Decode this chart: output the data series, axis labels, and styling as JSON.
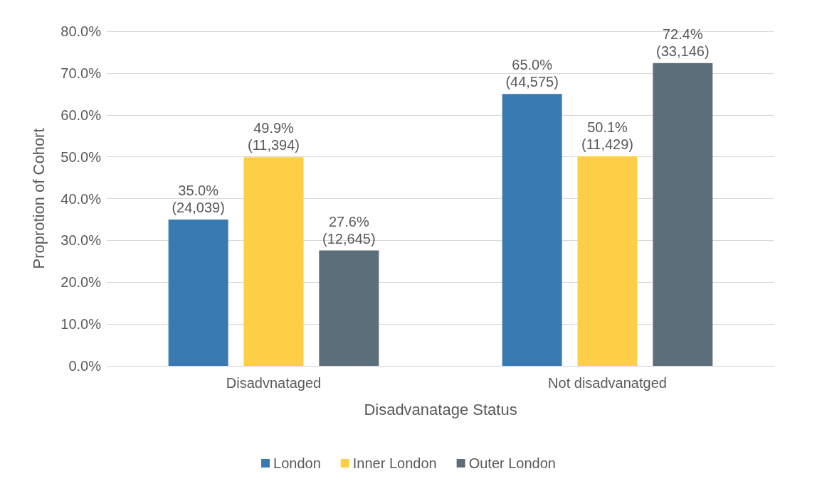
{
  "chart_data": {
    "type": "bar",
    "xlabel": "Disadvanatage Status",
    "ylabel": "Proprotion of Cohort",
    "categories": [
      "Disadvnataged",
      "Not disadvanatged"
    ],
    "series": [
      {
        "name": "London",
        "color": "#3a7ab3",
        "values": [
          35.0,
          65.0
        ],
        "value_labels": [
          "35.0%\n(24,039)",
          "65.0%\n(44,575)"
        ]
      },
      {
        "name": "Inner London",
        "color": "#fecf46",
        "values": [
          49.9,
          50.1
        ],
        "value_labels": [
          "49.9%\n(11,394)",
          "50.1%\n(11,429)"
        ]
      },
      {
        "name": "Outer London",
        "color": "#5b6e79",
        "values": [
          27.6,
          72.4
        ],
        "value_labels": [
          "27.6%\n(12,645)",
          "72.4%\n(33,146)"
        ]
      }
    ],
    "ylim": [
      0,
      80
    ],
    "yticks": [
      {
        "value": 0,
        "label": "0.0%"
      },
      {
        "value": 10,
        "label": "10.0%"
      },
      {
        "value": 20,
        "label": "20.0%"
      },
      {
        "value": 30,
        "label": "30.0%"
      },
      {
        "value": 40,
        "label": "40.0%"
      },
      {
        "value": 50,
        "label": "50.0%"
      },
      {
        "value": 60,
        "label": "60.0%"
      },
      {
        "value": 70,
        "label": "70.0%"
      },
      {
        "value": 80,
        "label": "80.0%"
      }
    ],
    "grid": "y",
    "legend": "bottom"
  }
}
